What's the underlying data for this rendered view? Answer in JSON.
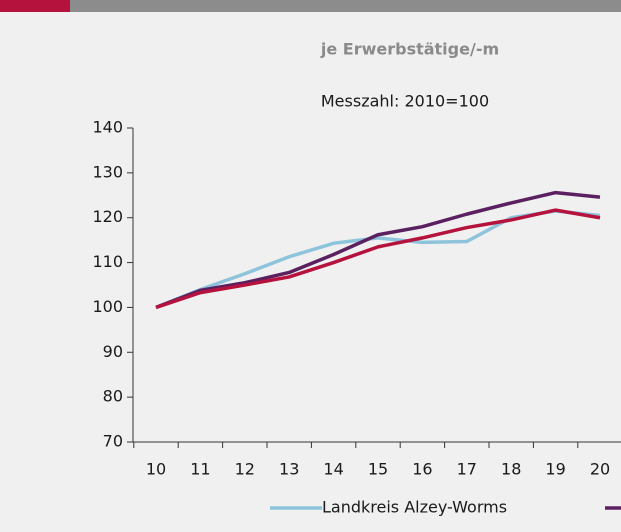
{
  "chart_data": {
    "type": "line",
    "title": "je Erwerbstätige/-m",
    "subtitle": "Messzahl: 2010=100",
    "categories": [
      "10",
      "11",
      "12",
      "13",
      "14",
      "15",
      "16",
      "17",
      "18",
      "19",
      "20"
    ],
    "series": [
      {
        "name": "Landkreis Alzey-Worms",
        "color": "#8ec3dc",
        "values": [
          100,
          104,
          107.5,
          111.3,
          114.3,
          115.5,
          114.5,
          114.7,
          120,
          121.5,
          120.5
        ]
      },
      {
        "name": null,
        "color": "#5b2060",
        "values": [
          100,
          103.8,
          105.5,
          107.8,
          111.8,
          116.2,
          118,
          120.8,
          123.3,
          125.6,
          124.6
        ]
      },
      {
        "name": null,
        "color": "#b5123e",
        "values": [
          100,
          103.3,
          105,
          106.8,
          110,
          113.5,
          115.5,
          117.8,
          119.5,
          121.7,
          120
        ]
      }
    ],
    "ylim": [
      70,
      140
    ],
    "yticks": [
      70,
      80,
      90,
      100,
      110,
      120,
      130,
      140
    ],
    "grid": false
  }
}
